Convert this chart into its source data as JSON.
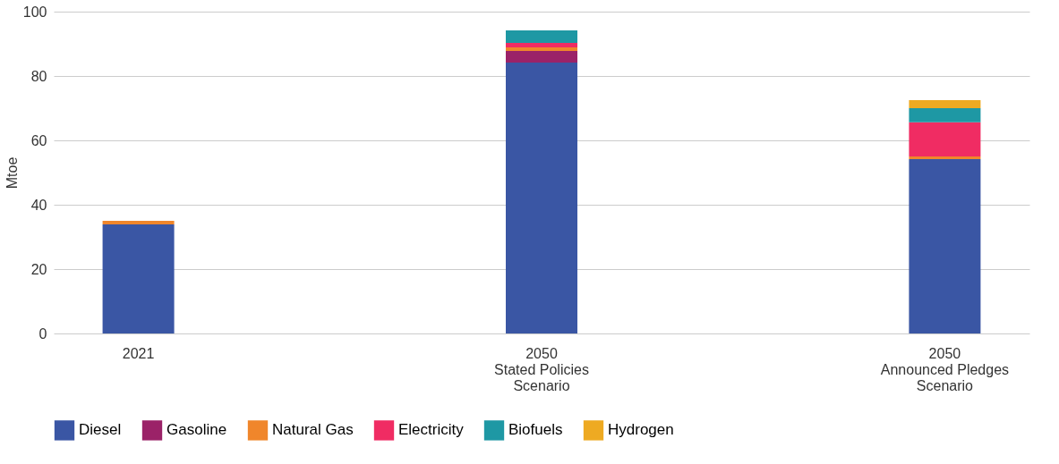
{
  "chart_data": {
    "type": "bar",
    "stacked": true,
    "ylabel": "Mtoe",
    "categories": [
      "2021",
      "2050\nStated Policies\nScenario",
      "2050\nAnnounced Pledges\nScenario"
    ],
    "series": [
      {
        "name": "Diesel",
        "color": "#3a56a4",
        "values": [
          33.9,
          84.2,
          54.2
        ]
      },
      {
        "name": "Gasoline",
        "color": "#9b2268",
        "values": [
          0,
          3.6,
          0
        ]
      },
      {
        "name": "Natural Gas",
        "color": "#f0862b",
        "values": [
          1.1,
          1.1,
          0.8
        ]
      },
      {
        "name": "Electricity",
        "color": "#f02c63",
        "values": [
          0,
          1.4,
          10.6
        ]
      },
      {
        "name": "Biofuels",
        "color": "#1e98a4",
        "values": [
          0,
          3.9,
          4.4
        ]
      },
      {
        "name": "Hydrogen",
        "color": "#eeaa22",
        "values": [
          0,
          0,
          2.5
        ]
      }
    ],
    "ylim": [
      0,
      100
    ],
    "yticks": [
      0,
      20,
      40,
      60,
      80,
      100
    ],
    "grid": "y",
    "legend": "bottom"
  }
}
